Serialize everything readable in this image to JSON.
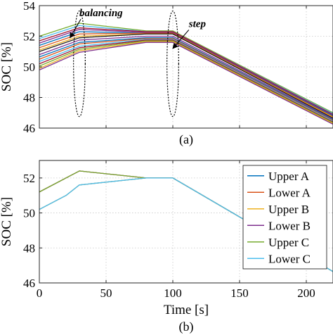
{
  "chart_data": [
    {
      "type": "line",
      "panel_label": "(a)",
      "title": "",
      "xlabel": "",
      "ylabel": "SOC [%]",
      "xlim": [
        0,
        220
      ],
      "ylim": [
        46,
        54
      ],
      "yticks": [
        46,
        48,
        50,
        52,
        54
      ],
      "yticklabels": [
        "46",
        "48",
        "50",
        "52",
        "54"
      ],
      "xticks": [
        0,
        50,
        100,
        150,
        200
      ],
      "grid": true,
      "annotations": [
        {
          "text": "balancing",
          "x": 30,
          "y": 53.3,
          "target": [
            23,
            51.9
          ]
        },
        {
          "text": "step",
          "x": 112,
          "y": 52.6,
          "target": [
            100,
            51.2
          ]
        }
      ],
      "ellipses": [
        {
          "cx": 30,
          "cy": 50.2,
          "rx": 4.4,
          "ry": 3.45
        },
        {
          "cx": 100,
          "cy": 50.2,
          "rx": 4.4,
          "ry": 3.45
        }
      ],
      "series": [
        {
          "color": "#77ac30",
          "values": [
            [
              0,
              52.0
            ],
            [
              30,
              52.85
            ],
            [
              80,
              52.35
            ],
            [
              100,
              52.35
            ],
            [
              220,
              47.0
            ]
          ]
        },
        {
          "color": "#4dbeee",
          "values": [
            [
              0,
              51.85
            ],
            [
              30,
              52.7
            ],
            [
              80,
              52.3
            ],
            [
              100,
              52.3
            ],
            [
              220,
              46.95
            ]
          ]
        },
        {
          "color": "#a2142f",
          "values": [
            [
              0,
              51.7
            ],
            [
              30,
              52.55
            ],
            [
              80,
              52.3
            ],
            [
              100,
              52.3
            ],
            [
              220,
              46.9
            ]
          ]
        },
        {
          "color": "#7e2f8e",
          "values": [
            [
              0,
              51.55
            ],
            [
              30,
              52.45
            ],
            [
              80,
              52.25
            ],
            [
              100,
              52.25
            ],
            [
              220,
              46.85
            ]
          ]
        },
        {
          "color": "#0072bd",
          "values": [
            [
              0,
              51.4
            ],
            [
              30,
              52.3
            ],
            [
              80,
              52.2
            ],
            [
              100,
              52.2
            ],
            [
              220,
              46.8
            ]
          ]
        },
        {
          "color": "#d95319",
          "values": [
            [
              0,
              51.25
            ],
            [
              30,
              52.15
            ],
            [
              80,
              52.2
            ],
            [
              100,
              52.2
            ],
            [
              220,
              46.75
            ]
          ]
        },
        {
          "color": "#edb120",
          "values": [
            [
              0,
              51.1
            ],
            [
              30,
              52.0
            ],
            [
              80,
              52.15
            ],
            [
              100,
              52.15
            ],
            [
              220,
              46.7
            ]
          ]
        },
        {
          "color": "#1a1a1a",
          "values": [
            [
              0,
              51.0
            ],
            [
              30,
              51.9
            ],
            [
              80,
              52.15
            ],
            [
              100,
              52.15
            ],
            [
              220,
              46.65
            ]
          ]
        },
        {
          "color": "#7e2f8e",
          "values": [
            [
              0,
              50.8
            ],
            [
              30,
              51.75
            ],
            [
              80,
              52.0
            ],
            [
              100,
              52.0
            ],
            [
              220,
              46.6
            ]
          ]
        },
        {
          "color": "#0072bd",
          "values": [
            [
              0,
              50.65
            ],
            [
              30,
              51.6
            ],
            [
              80,
              51.9
            ],
            [
              100,
              51.9
            ],
            [
              220,
              46.55
            ]
          ]
        },
        {
          "color": "#d95319",
          "values": [
            [
              0,
              50.5
            ],
            [
              30,
              51.5
            ],
            [
              80,
              51.85
            ],
            [
              100,
              51.85
            ],
            [
              220,
              46.5
            ]
          ]
        },
        {
          "color": "#4dbeee",
          "values": [
            [
              0,
              50.35
            ],
            [
              30,
              51.35
            ],
            [
              80,
              51.8
            ],
            [
              100,
              51.8
            ],
            [
              220,
              46.45
            ]
          ]
        },
        {
          "color": "#a2142f",
          "values": [
            [
              0,
              50.2
            ],
            [
              30,
              51.25
            ],
            [
              80,
              51.75
            ],
            [
              100,
              51.75
            ],
            [
              220,
              46.4
            ]
          ]
        },
        {
          "color": "#77ac30",
          "values": [
            [
              0,
              50.05
            ],
            [
              30,
              51.15
            ],
            [
              80,
              51.7
            ],
            [
              100,
              51.7
            ],
            [
              220,
              46.35
            ]
          ]
        },
        {
          "color": "#edb120",
          "values": [
            [
              0,
              49.9
            ],
            [
              30,
              51.05
            ],
            [
              80,
              51.65
            ],
            [
              100,
              51.65
            ],
            [
              220,
              46.3
            ]
          ]
        },
        {
          "color": "#7e2f8e",
          "values": [
            [
              0,
              49.8
            ],
            [
              30,
              50.95
            ],
            [
              80,
              51.6
            ],
            [
              100,
              51.6
            ],
            [
              220,
              46.25
            ]
          ]
        }
      ]
    },
    {
      "type": "line",
      "panel_label": "(b)",
      "title": "",
      "xlabel": "Time [s]",
      "ylabel": "SOC [%]",
      "xlim": [
        0,
        220
      ],
      "ylim": [
        46,
        53
      ],
      "yticks": [
        46,
        48,
        50,
        52
      ],
      "yticklabels": [
        "46",
        "48",
        "50",
        "52"
      ],
      "xticks": [
        0,
        50,
        100,
        150,
        200
      ],
      "xticklabels": [
        "0",
        "50",
        "100",
        "150",
        "200"
      ],
      "grid": true,
      "legend_position": "right",
      "series": [
        {
          "name": "Upper A",
          "color": "#0072bd",
          "values": [
            [
              0,
              50.2
            ],
            [
              20,
              51.0
            ],
            [
              30,
              51.6
            ],
            [
              80,
              52.0
            ],
            [
              100,
              52.0
            ],
            [
              220,
              46.65
            ]
          ]
        },
        {
          "name": "Lower A",
          "color": "#d95319",
          "values": [
            [
              0,
              51.2
            ],
            [
              20,
              52.0
            ],
            [
              30,
              52.4
            ],
            [
              80,
              52.0
            ],
            [
              100,
              52.0
            ],
            [
              220,
              46.65
            ]
          ]
        },
        {
          "name": "Upper B",
          "color": "#edb120",
          "values": [
            [
              0,
              50.2
            ],
            [
              20,
              51.0
            ],
            [
              30,
              51.6
            ],
            [
              80,
              52.0
            ],
            [
              100,
              52.0
            ],
            [
              220,
              46.65
            ]
          ]
        },
        {
          "name": "Lower B",
          "color": "#7e2f8e",
          "values": [
            [
              0,
              51.2
            ],
            [
              20,
              52.0
            ],
            [
              30,
              52.4
            ],
            [
              80,
              52.0
            ],
            [
              100,
              52.0
            ],
            [
              220,
              46.65
            ]
          ]
        },
        {
          "name": "Upper C",
          "color": "#77ac30",
          "values": [
            [
              0,
              51.2
            ],
            [
              20,
              52.0
            ],
            [
              30,
              52.4
            ],
            [
              80,
              52.0
            ],
            [
              100,
              52.0
            ],
            [
              220,
              46.65
            ]
          ]
        },
        {
          "name": "Lower C",
          "color": "#4dbeee",
          "values": [
            [
              0,
              50.2
            ],
            [
              20,
              51.0
            ],
            [
              30,
              51.6
            ],
            [
              80,
              52.0
            ],
            [
              100,
              52.0
            ],
            [
              220,
              46.65
            ]
          ]
        }
      ]
    }
  ]
}
